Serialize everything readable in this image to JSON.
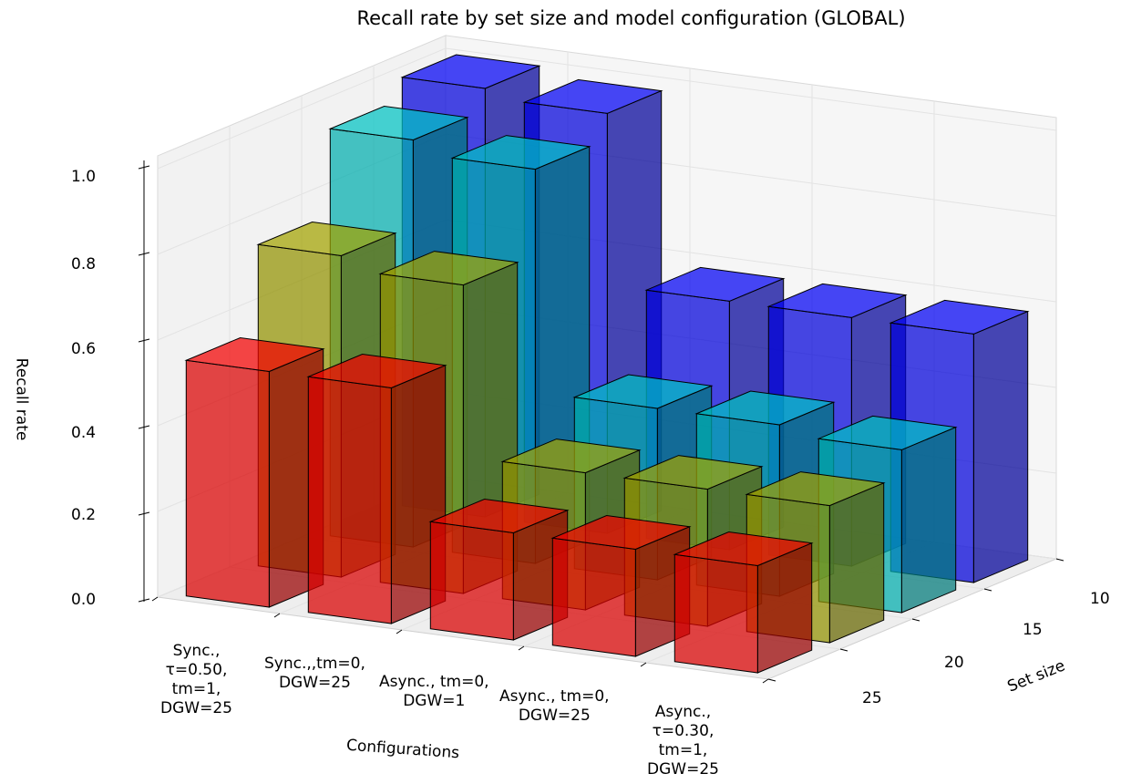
{
  "chart_data": {
    "type": "bar3d",
    "title": "Recall rate by set size and model configuration (GLOBAL)",
    "zlabel": "Recall rate",
    "xlabel": "Configurations",
    "ylabel": "Set size",
    "zlim": [
      0,
      1.0
    ],
    "zticks": [
      "0.0",
      "0.2",
      "0.4",
      "0.6",
      "0.8",
      "1.0"
    ],
    "set_size_ticks": [
      "10",
      "15",
      "20",
      "25"
    ],
    "configurations": [
      [
        "Sync.,",
        "τ=0.50,",
        "tm=1,",
        "DGW=25"
      ],
      [
        "Sync.,,tm=0,",
        "DGW=25"
      ],
      [
        "Async., tm=0,",
        "DGW=1"
      ],
      [
        "Async., tm=0,",
        "DGW=25"
      ],
      [
        "Async.,",
        "τ=0.30,",
        "tm=1,",
        "DGW=25"
      ]
    ],
    "series": [
      {
        "set_size": 10,
        "color": "#0000ff",
        "values": [
          1.0,
          0.98,
          0.58,
          0.58,
          0.58
        ]
      },
      {
        "set_size": 15,
        "color": "#00cccc",
        "values": [
          0.95,
          0.92,
          0.4,
          0.4,
          0.38
        ]
      },
      {
        "set_size": 20,
        "color": "#aaaa00",
        "values": [
          0.75,
          0.72,
          0.32,
          0.32,
          0.32
        ]
      },
      {
        "set_size": 25,
        "color": "#ff0000",
        "values": [
          0.55,
          0.55,
          0.25,
          0.25,
          0.25
        ]
      }
    ],
    "grid": true
  }
}
